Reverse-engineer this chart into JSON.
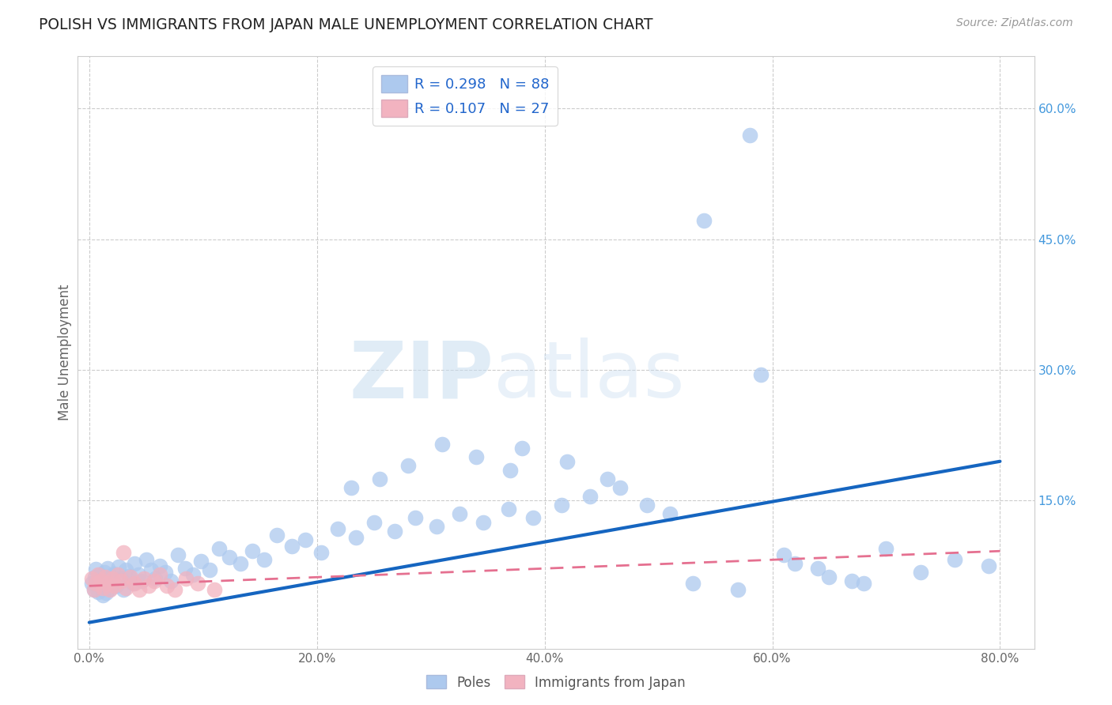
{
  "title": "POLISH VS IMMIGRANTS FROM JAPAN MALE UNEMPLOYMENT CORRELATION CHART",
  "source": "Source: ZipAtlas.com",
  "ylabel": "Male Unemployment",
  "xtick_vals": [
    0.0,
    0.2,
    0.4,
    0.6,
    0.8
  ],
  "ytick_vals": [
    0.15,
    0.3,
    0.45,
    0.6
  ],
  "xlim": [
    -0.01,
    0.83
  ],
  "ylim": [
    -0.02,
    0.66
  ],
  "legend_r_poles": "R = 0.298",
  "legend_n_poles": "N = 88",
  "legend_r_japan": "R = 0.107",
  "legend_n_japan": "N = 27",
  "color_poles": "#adc9ee",
  "color_japan": "#f2b3c0",
  "color_poles_line": "#1565c0",
  "color_japan_line": "#e57090",
  "background": "#ffffff",
  "poles_line_x0": 0.0,
  "poles_line_y0": 0.01,
  "poles_line_x1": 0.8,
  "poles_line_y1": 0.195,
  "japan_line_x0": 0.0,
  "japan_line_y0": 0.052,
  "japan_line_x1": 0.8,
  "japan_line_y1": 0.092,
  "poles_x": [
    0.002,
    0.004,
    0.005,
    0.006,
    0.007,
    0.008,
    0.009,
    0.01,
    0.011,
    0.012,
    0.013,
    0.014,
    0.015,
    0.016,
    0.017,
    0.018,
    0.019,
    0.02,
    0.022,
    0.024,
    0.026,
    0.028,
    0.03,
    0.032,
    0.035,
    0.038,
    0.04,
    0.043,
    0.046,
    0.05,
    0.054,
    0.058,
    0.062,
    0.067,
    0.072,
    0.078,
    0.084,
    0.091,
    0.098,
    0.106,
    0.114,
    0.123,
    0.133,
    0.143,
    0.154,
    0.165,
    0.178,
    0.19,
    0.204,
    0.218,
    0.234,
    0.25,
    0.268,
    0.286,
    0.305,
    0.325,
    0.346,
    0.368,
    0.39,
    0.415,
    0.44,
    0.466,
    0.38,
    0.42,
    0.455,
    0.37,
    0.34,
    0.31,
    0.28,
    0.255,
    0.23,
    0.54,
    0.58,
    0.61,
    0.64,
    0.67,
    0.7,
    0.73,
    0.76,
    0.79,
    0.49,
    0.51,
    0.53,
    0.57,
    0.59,
    0.62,
    0.65,
    0.68
  ],
  "poles_y": [
    0.055,
    0.048,
    0.062,
    0.071,
    0.058,
    0.045,
    0.065,
    0.052,
    0.06,
    0.041,
    0.068,
    0.055,
    0.044,
    0.072,
    0.058,
    0.049,
    0.063,
    0.057,
    0.066,
    0.052,
    0.074,
    0.06,
    0.048,
    0.07,
    0.063,
    0.055,
    0.078,
    0.065,
    0.058,
    0.082,
    0.07,
    0.06,
    0.075,
    0.068,
    0.058,
    0.088,
    0.072,
    0.065,
    0.08,
    0.07,
    0.095,
    0.085,
    0.078,
    0.092,
    0.082,
    0.11,
    0.098,
    0.105,
    0.09,
    0.118,
    0.108,
    0.125,
    0.115,
    0.13,
    0.12,
    0.135,
    0.125,
    0.14,
    0.13,
    0.145,
    0.155,
    0.165,
    0.21,
    0.195,
    0.175,
    0.185,
    0.2,
    0.215,
    0.19,
    0.175,
    0.165,
    0.472,
    0.57,
    0.088,
    0.072,
    0.058,
    0.095,
    0.068,
    0.082,
    0.075,
    0.145,
    0.135,
    0.055,
    0.048,
    0.295,
    0.078,
    0.062,
    0.055
  ],
  "japan_x": [
    0.002,
    0.004,
    0.006,
    0.008,
    0.01,
    0.012,
    0.014,
    0.016,
    0.018,
    0.02,
    0.022,
    0.025,
    0.028,
    0.032,
    0.036,
    0.04,
    0.044,
    0.048,
    0.052,
    0.057,
    0.062,
    0.068,
    0.075,
    0.085,
    0.095,
    0.03,
    0.11
  ],
  "japan_y": [
    0.06,
    0.048,
    0.055,
    0.065,
    0.058,
    0.05,
    0.062,
    0.055,
    0.048,
    0.06,
    0.052,
    0.065,
    0.058,
    0.05,
    0.062,
    0.055,
    0.048,
    0.06,
    0.052,
    0.058,
    0.065,
    0.052,
    0.048,
    0.06,
    0.055,
    0.09,
    0.048
  ]
}
